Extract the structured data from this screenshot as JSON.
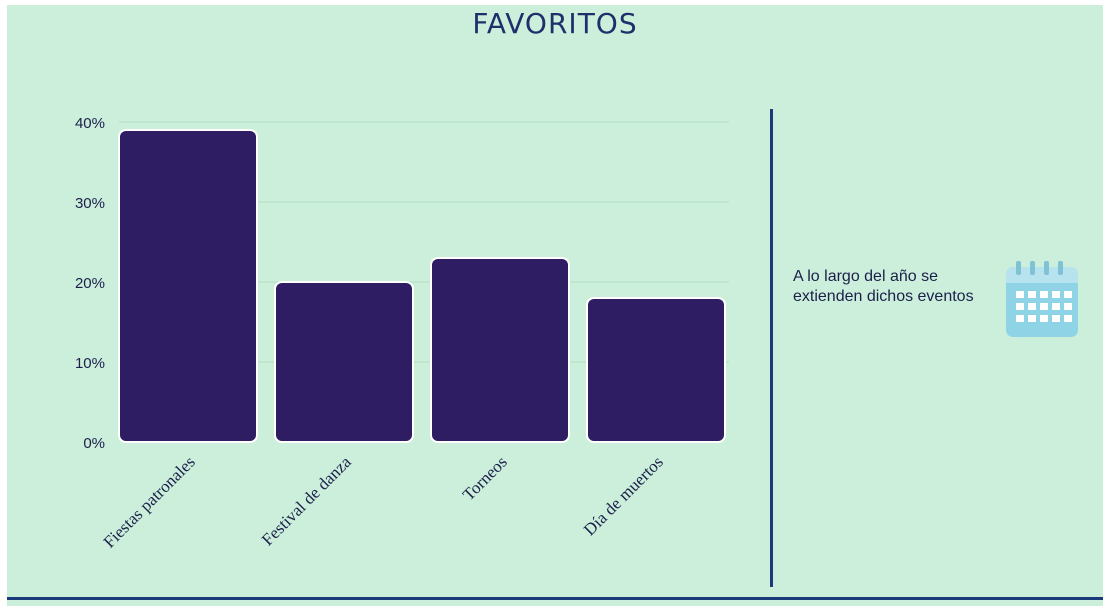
{
  "chart_data": {
    "type": "bar",
    "title": "FAVORITOS",
    "categories": [
      "Fiestas patronales",
      "Festival de danza",
      "Torneos",
      "Día de muertos"
    ],
    "values": [
      39,
      20,
      23,
      18
    ],
    "ylim": [
      0,
      40
    ],
    "yticks": [
      "0%",
      "10%",
      "20%",
      "30%",
      "40%"
    ],
    "xlabel": "",
    "ylabel": "",
    "grid": true,
    "bar_color": "#2e1d63"
  },
  "side_note": {
    "text": "A lo largo del año se extienden dichos eventos",
    "icon": "calendar-icon"
  },
  "colors": {
    "background": "#ccefdb",
    "accent": "#1b3a7a",
    "bars": "#2e1d63",
    "icon": "#8fd3e6"
  }
}
